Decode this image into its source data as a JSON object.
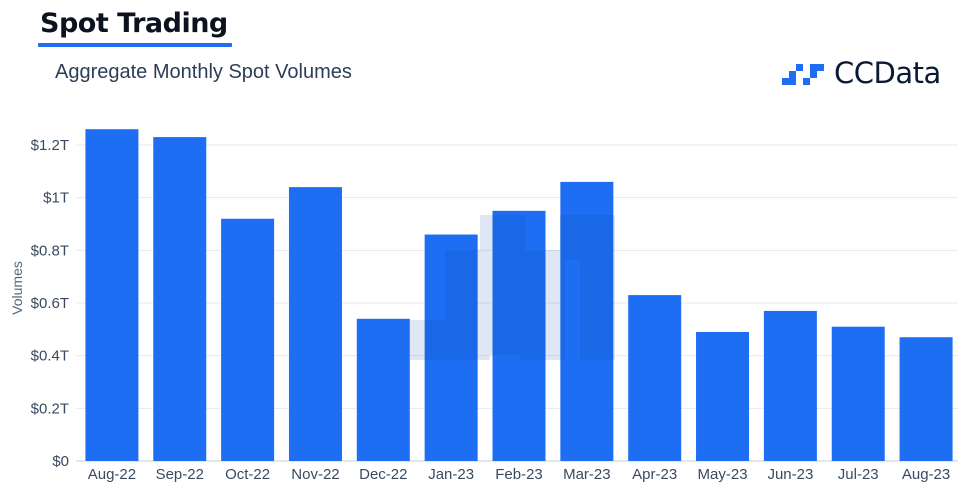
{
  "header": {
    "title": "Spot Trading",
    "subtitle": "Aggregate Monthly Spot Volumes",
    "logo_text": "CCData"
  },
  "chart_data": {
    "type": "bar",
    "title": "Spot Trading",
    "subtitle": "Aggregate Monthly Spot Volumes",
    "xlabel": "",
    "ylabel": "Volumes",
    "categories": [
      "Aug-22",
      "Sep-22",
      "Oct-22",
      "Nov-22",
      "Dec-22",
      "Jan-23",
      "Feb-23",
      "Mar-23",
      "Apr-23",
      "May-23",
      "Jun-23",
      "Jul-23",
      "Aug-23"
    ],
    "values": [
      1.26,
      1.23,
      0.92,
      1.04,
      0.54,
      0.86,
      0.95,
      1.06,
      0.63,
      0.49,
      0.57,
      0.51,
      0.47
    ],
    "unit": "trillion USD",
    "ylim": [
      0,
      1.25
    ],
    "yticks": [
      0,
      0.2,
      0.4,
      0.6,
      0.8,
      1.0,
      1.2
    ],
    "ytick_labels": [
      "$0",
      "$0.2T",
      "$0.4T",
      "$0.6T",
      "$0.8T",
      "$1T",
      "$1.2T"
    ],
    "grid": true,
    "bar_color": "#1d6ef2"
  }
}
